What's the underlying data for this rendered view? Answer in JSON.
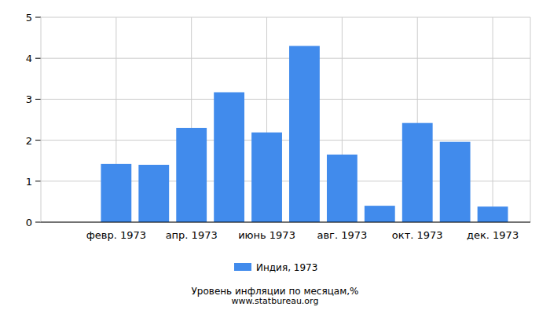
{
  "chart_data": {
    "type": "bar",
    "title": "Уровень инфляции по месяцам,%",
    "subtitle": "www.statbureau.org",
    "categories": [
      null,
      "февр. 1973",
      null,
      "апр. 1973",
      null,
      "июнь 1973",
      null,
      "авг. 1973",
      null,
      "окт. 1973",
      null,
      "дек. 1973"
    ],
    "series": [
      {
        "name": "Индия, 1973",
        "color": "#418bec",
        "values": [
          null,
          1.42,
          1.4,
          2.3,
          3.17,
          2.19,
          4.3,
          1.65,
          0.4,
          2.42,
          1.96,
          0.38
        ]
      }
    ],
    "ylim": [
      0,
      5
    ],
    "yticks": [
      0,
      1,
      2,
      3,
      4,
      5
    ],
    "grid": true,
    "legend": "bottom"
  }
}
